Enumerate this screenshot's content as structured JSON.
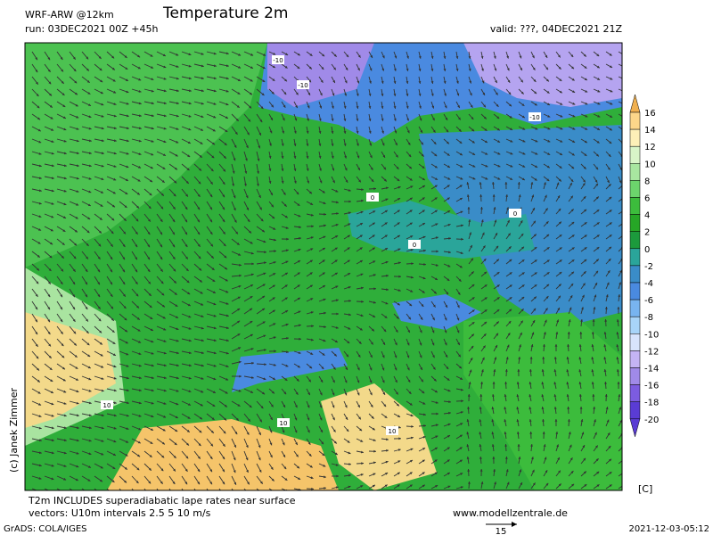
{
  "header": {
    "model": "WRF-ARW @12km",
    "title": "Temperature 2m",
    "run": "run: 03DEC2021 00Z +45h",
    "valid": "valid: ???, 04DEC2021 21Z"
  },
  "map": {
    "labels": [
      "-10",
      "-10",
      "-10",
      "0",
      "0",
      "0",
      "10",
      "10",
      "10"
    ]
  },
  "colorbar": {
    "labels": [
      "16",
      "14",
      "12",
      "10",
      "8",
      "6",
      "4",
      "2",
      "0",
      "-2",
      "-4",
      "-6",
      "-8",
      "-10",
      "-12",
      "-14",
      "-16",
      "-18",
      "-20"
    ],
    "unit": "[C]"
  },
  "copyright": "(c) Janek Zimmer",
  "footer": {
    "note1": "T2m INCLUDES superadiabatic lape rates near surface",
    "note2": "vectors: U10m intervals 2.5 5 10 m/s",
    "website": "www.modellzentrale.de",
    "grads": "GrADS: COLA/IGES",
    "vector_ref": "15",
    "timestamp": "2021-12-03-05:12"
  }
}
